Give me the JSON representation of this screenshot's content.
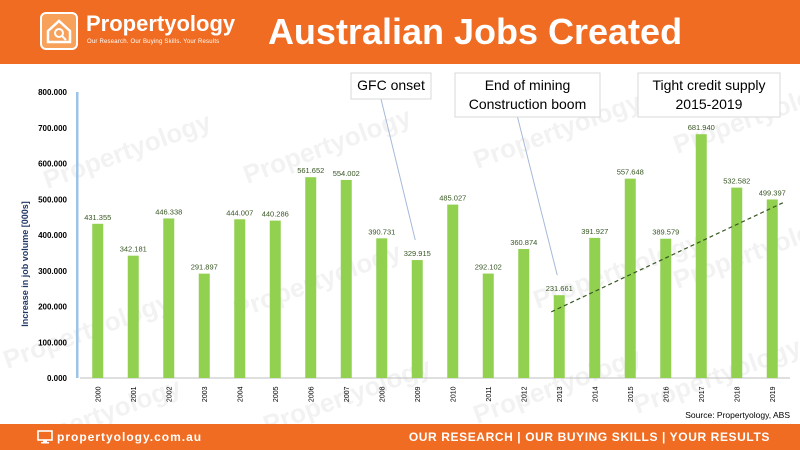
{
  "header": {
    "brand": "Propertyology",
    "tagline": "Our Research. Our Buying Skills. Your Results",
    "title": "Australian Jobs Created"
  },
  "footer": {
    "url": "propertyology.com.au",
    "tagline": "OUR RESEARCH | OUR BUYING SKILLS | YOUR RESULTS",
    "source": "Source: Propertyology, ABS"
  },
  "colors": {
    "header_bg": "#ef6c22",
    "bar": "#92d050",
    "label": "#375623",
    "trendline": "#385723",
    "axis_accent": "#9dc3e6"
  },
  "icons": {
    "logo": "house-search-icon",
    "footer": "monitor-icon"
  },
  "chart_data": {
    "type": "bar",
    "categories": [
      "2000",
      "2001",
      "2002",
      "2003",
      "2004",
      "2005",
      "2006",
      "2007",
      "2008",
      "2009",
      "2010",
      "2011",
      "2012",
      "2013",
      "2014",
      "2015",
      "2016",
      "2017",
      "2018",
      "2019"
    ],
    "values": [
      431.355,
      342.181,
      446.338,
      291.897,
      444.007,
      440.286,
      561.652,
      554.002,
      390.731,
      329.915,
      485.027,
      292.102,
      360.874,
      231.661,
      391.927,
      557.648,
      389.579,
      681.94,
      532.582,
      499.397
    ],
    "value_labels": [
      "431.355",
      "342.181",
      "446.338",
      "291.897",
      "444.007",
      "440.286",
      "561.652",
      "554.002",
      "390.731",
      "329.915",
      "485.027",
      "292.102",
      "360.874",
      "231.661",
      "391.927",
      "557.648",
      "389.579",
      "681.940",
      "532.582",
      "499.397"
    ],
    "ylabel": "Increase in job volume [000s]",
    "xlabel": "",
    "ylim": [
      0,
      800
    ],
    "yticks": [
      "0.000",
      "100.000",
      "200.000",
      "300.000",
      "400.000",
      "500.000",
      "600.000",
      "700.000",
      "800.000"
    ],
    "trendline": {
      "style": "dashed",
      "from_category": "2013",
      "to_category": "2019",
      "from_value": 185,
      "to_value": 492
    },
    "annotations": [
      {
        "text": [
          "GFC onset"
        ],
        "points_to": "2009"
      },
      {
        "text": [
          "End of mining",
          "Construction boom"
        ],
        "points_to": "2013"
      },
      {
        "text": [
          "Tight credit supply",
          "2015-2019"
        ]
      }
    ],
    "watermark": "Propertyology",
    "grid": false,
    "legend": "none"
  }
}
